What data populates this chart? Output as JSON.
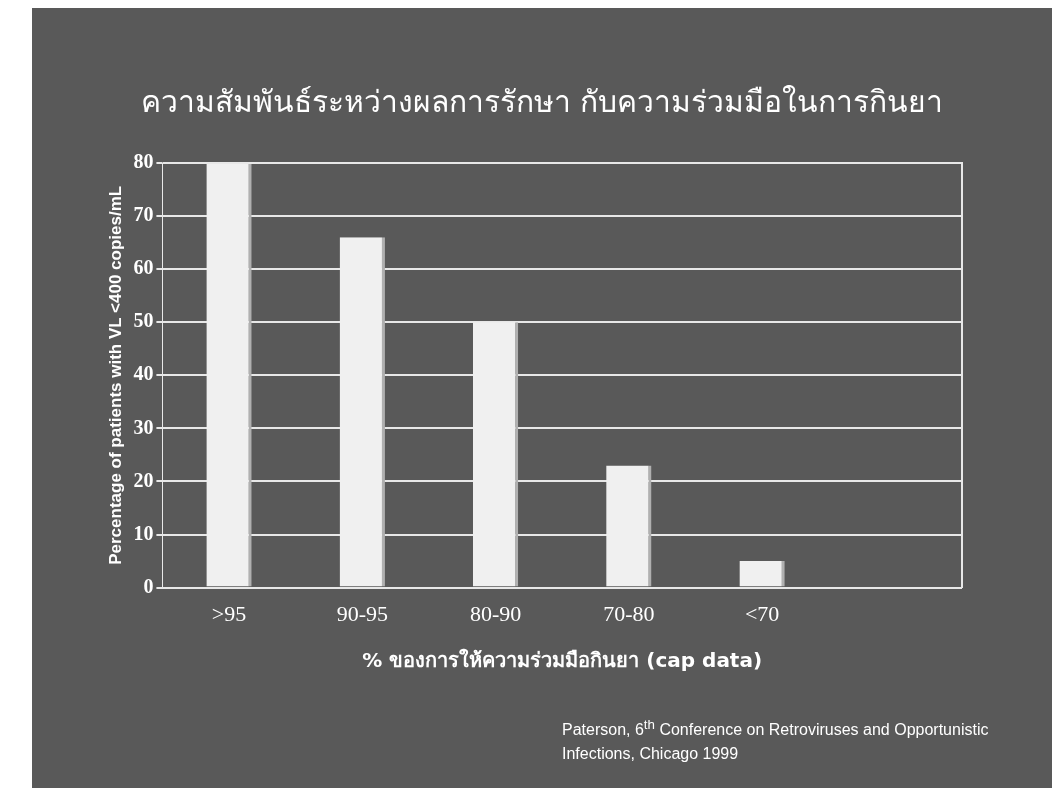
{
  "chart_data": {
    "type": "bar",
    "title": "ความสัมพันธ์ระหว่างผลการรักษา กับความร่วมมือในการกินยา",
    "xlabel": "% ของการให้ความร่วมมือกินยา (cap data)",
    "ylabel": "Percentage of patients with VL <400 copies/mL",
    "categories": [
      ">95",
      "90-95",
      "80-90",
      "70-80",
      "<70",
      null
    ],
    "values": [
      80,
      66,
      50,
      23,
      5,
      null
    ],
    "color": "#f0f0f0",
    "ylim": [
      0,
      80
    ],
    "yticks": [
      0,
      10,
      20,
      30,
      40,
      50,
      60,
      70,
      80
    ],
    "grid": "y",
    "legend": false,
    "annotations": [
      "Paterson, 6$^{th}$  Conference on Retroviruses and Opportunistic Infections, Chicago 1999"
    ]
  }
}
